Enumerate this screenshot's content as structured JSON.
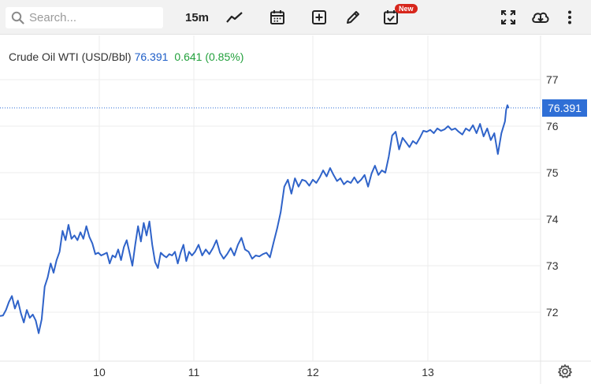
{
  "toolbar": {
    "search_placeholder": "Search...",
    "interval": "15m",
    "badge": "New",
    "icons": [
      "search-icon",
      "chart-type-icon",
      "calendar-icon",
      "add-indicator-icon",
      "draw-icon",
      "events-icon",
      "fullscreen-icon",
      "download-icon",
      "more-icon"
    ]
  },
  "legend": {
    "name": "Crude Oil WTI (USD/Bbl)",
    "value": "76.391",
    "change": "0.641 (0.85%)"
  },
  "price_tag": "76.391",
  "colors": {
    "line": "#2f63c9",
    "up": "#22a03c",
    "tag": "#2f6fd6"
  },
  "chart_data": {
    "type": "line",
    "title": "Crude Oil WTI (USD/Bbl)",
    "last_value": 76.391,
    "y_ticks": [
      "72",
      "73",
      "74",
      "75",
      "76",
      "77"
    ],
    "x_ticks": [
      "10",
      "11",
      "12",
      "13"
    ],
    "ylim": [
      71.4,
      77.4
    ],
    "xlim": [
      9.0,
      13.95
    ],
    "grid": true,
    "points": [
      [
        9.0,
        71.92
      ],
      [
        9.03,
        71.93
      ],
      [
        9.06,
        72.05
      ],
      [
        9.09,
        72.22
      ],
      [
        9.12,
        72.35
      ],
      [
        9.15,
        72.08
      ],
      [
        9.18,
        72.25
      ],
      [
        9.21,
        71.98
      ],
      [
        9.24,
        71.78
      ],
      [
        9.27,
        72.05
      ],
      [
        9.3,
        71.88
      ],
      [
        9.33,
        71.95
      ],
      [
        9.36,
        71.82
      ],
      [
        9.39,
        71.55
      ],
      [
        9.42,
        71.85
      ],
      [
        9.45,
        72.55
      ],
      [
        9.48,
        72.75
      ],
      [
        9.51,
        73.05
      ],
      [
        9.54,
        72.85
      ],
      [
        9.57,
        73.12
      ],
      [
        9.6,
        73.3
      ],
      [
        9.63,
        73.75
      ],
      [
        9.66,
        73.55
      ],
      [
        9.69,
        73.88
      ],
      [
        9.72,
        73.58
      ],
      [
        9.75,
        73.65
      ],
      [
        9.78,
        73.55
      ],
      [
        9.81,
        73.72
      ],
      [
        9.84,
        73.58
      ],
      [
        9.87,
        73.85
      ],
      [
        9.9,
        73.62
      ],
      [
        9.93,
        73.48
      ],
      [
        9.96,
        73.25
      ],
      [
        9.99,
        73.28
      ],
      [
        10.02,
        73.22
      ],
      [
        10.05,
        73.25
      ],
      [
        10.08,
        73.28
      ],
      [
        10.11,
        73.05
      ],
      [
        10.14,
        73.22
      ],
      [
        10.17,
        73.18
      ],
      [
        10.2,
        73.35
      ],
      [
        10.23,
        73.12
      ],
      [
        10.26,
        73.4
      ],
      [
        10.29,
        73.55
      ],
      [
        10.32,
        73.28
      ],
      [
        10.35,
        73.0
      ],
      [
        10.38,
        73.45
      ],
      [
        10.41,
        73.85
      ],
      [
        10.44,
        73.52
      ],
      [
        10.47,
        73.92
      ],
      [
        10.5,
        73.65
      ],
      [
        10.53,
        73.95
      ],
      [
        10.56,
        73.45
      ],
      [
        10.59,
        73.08
      ],
      [
        10.62,
        72.95
      ],
      [
        10.65,
        73.28
      ],
      [
        10.68,
        73.22
      ],
      [
        10.71,
        73.18
      ],
      [
        10.74,
        73.25
      ],
      [
        10.77,
        73.22
      ],
      [
        10.8,
        73.3
      ],
      [
        10.83,
        73.05
      ],
      [
        10.86,
        73.28
      ],
      [
        10.89,
        73.45
      ],
      [
        10.92,
        73.1
      ],
      [
        10.95,
        73.3
      ],
      [
        10.98,
        73.22
      ],
      [
        11.01,
        73.3
      ],
      [
        11.04,
        73.45
      ],
      [
        11.07,
        73.22
      ],
      [
        11.1,
        73.35
      ],
      [
        11.13,
        73.25
      ],
      [
        11.16,
        73.38
      ],
      [
        11.19,
        73.55
      ],
      [
        11.22,
        73.28
      ],
      [
        11.25,
        73.15
      ],
      [
        11.28,
        73.25
      ],
      [
        11.31,
        73.38
      ],
      [
        11.34,
        73.22
      ],
      [
        11.37,
        73.45
      ],
      [
        11.4,
        73.6
      ],
      [
        11.43,
        73.35
      ],
      [
        11.46,
        73.3
      ],
      [
        11.49,
        73.15
      ],
      [
        11.52,
        73.22
      ],
      [
        11.55,
        73.2
      ],
      [
        11.58,
        73.25
      ],
      [
        11.61,
        73.28
      ],
      [
        11.64,
        73.18
      ],
      [
        11.67,
        73.5
      ],
      [
        11.7,
        73.8
      ],
      [
        11.73,
        74.15
      ],
      [
        11.76,
        74.7
      ],
      [
        11.79,
        74.85
      ],
      [
        11.82,
        74.55
      ],
      [
        11.85,
        74.88
      ],
      [
        11.88,
        74.7
      ],
      [
        11.91,
        74.85
      ],
      [
        11.94,
        74.82
      ],
      [
        11.97,
        74.72
      ],
      [
        12.0,
        74.85
      ],
      [
        12.03,
        74.78
      ],
      [
        12.06,
        74.9
      ],
      [
        12.09,
        75.05
      ],
      [
        12.12,
        74.92
      ],
      [
        12.15,
        75.1
      ],
      [
        12.18,
        74.95
      ],
      [
        12.21,
        74.82
      ],
      [
        12.24,
        74.88
      ],
      [
        12.27,
        74.75
      ],
      [
        12.3,
        74.82
      ],
      [
        12.33,
        74.78
      ],
      [
        12.36,
        74.9
      ],
      [
        12.39,
        74.78
      ],
      [
        12.42,
        74.85
      ],
      [
        12.45,
        74.95
      ],
      [
        12.48,
        74.7
      ],
      [
        12.51,
        74.98
      ],
      [
        12.54,
        75.15
      ],
      [
        12.57,
        74.95
      ],
      [
        12.6,
        75.05
      ],
      [
        12.63,
        75.0
      ],
      [
        12.66,
        75.35
      ],
      [
        12.69,
        75.8
      ],
      [
        12.72,
        75.88
      ],
      [
        12.75,
        75.5
      ],
      [
        12.78,
        75.75
      ],
      [
        12.81,
        75.65
      ],
      [
        12.84,
        75.55
      ],
      [
        12.87,
        75.68
      ],
      [
        12.9,
        75.62
      ],
      [
        12.93,
        75.75
      ],
      [
        12.96,
        75.9
      ],
      [
        12.99,
        75.88
      ],
      [
        13.02,
        75.92
      ],
      [
        13.05,
        75.85
      ],
      [
        13.08,
        75.95
      ],
      [
        13.11,
        75.9
      ],
      [
        13.14,
        75.93
      ],
      [
        13.17,
        76.0
      ],
      [
        13.2,
        75.92
      ],
      [
        13.23,
        75.95
      ],
      [
        13.26,
        75.88
      ],
      [
        13.29,
        75.82
      ],
      [
        13.32,
        75.95
      ],
      [
        13.35,
        75.9
      ],
      [
        13.38,
        76.02
      ],
      [
        13.41,
        75.85
      ],
      [
        13.44,
        76.05
      ],
      [
        13.47,
        75.78
      ],
      [
        13.5,
        75.95
      ],
      [
        13.53,
        75.7
      ],
      [
        13.56,
        75.85
      ],
      [
        13.59,
        75.4
      ],
      [
        13.62,
        75.85
      ],
      [
        13.65,
        76.1
      ],
      [
        13.66,
        76.35
      ],
      [
        13.67,
        76.45
      ],
      [
        13.68,
        76.39
      ]
    ]
  }
}
